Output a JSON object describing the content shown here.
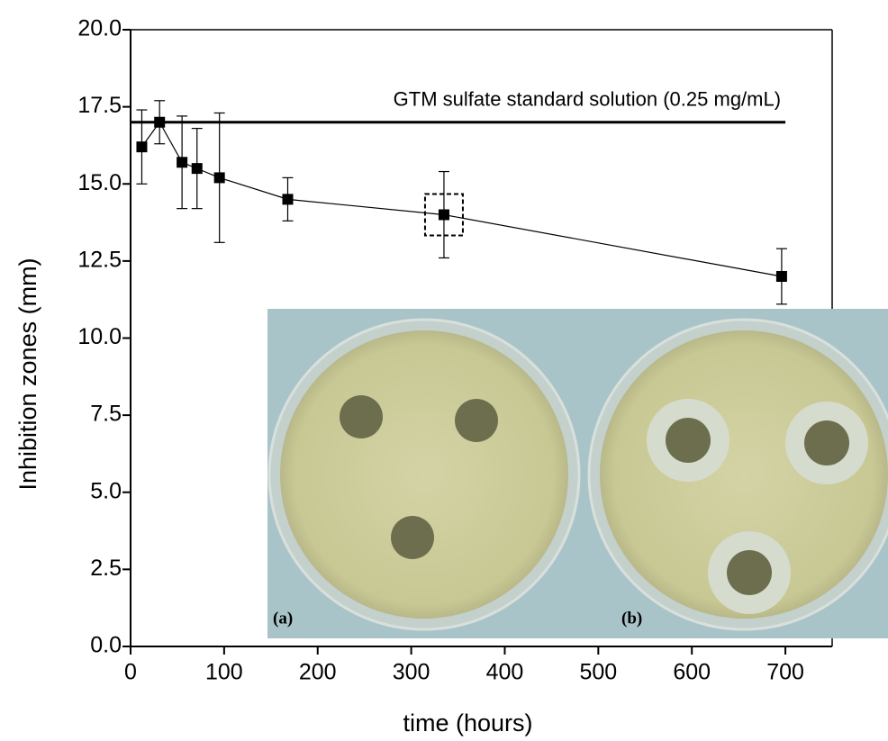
{
  "chart_data": {
    "type": "line",
    "x_label": "time (hours)",
    "y_label": "Inhibition zones (mm)",
    "x": [
      12,
      31,
      55,
      71,
      95,
      168,
      335,
      696
    ],
    "series": [
      {
        "color": "#000000",
        "values": [
          16.2,
          17.0,
          15.7,
          15.5,
          15.2,
          14.5,
          14.0,
          12.0
        ],
        "errors": [
          1.2,
          0.7,
          1.5,
          1.3,
          2.1,
          0.7,
          1.4,
          0.9
        ]
      }
    ],
    "reference_line": {
      "value": 17.0,
      "x_end": 700,
      "label": "GTM sulfate standard solution (0.25 mg/mL)"
    },
    "highlight_index": 6,
    "xlim": [
      0,
      750
    ],
    "xticks": [
      0,
      100,
      200,
      300,
      400,
      500,
      600,
      700
    ],
    "ylim": [
      0,
      20
    ],
    "yticks": [
      {
        "value": 0,
        "label": "0.0"
      },
      2.5,
      {
        "value": 5,
        "label": "5.0"
      },
      7.5,
      {
        "value": 10,
        "label": "10.0"
      },
      12.5,
      {
        "value": 15,
        "label": "15.0"
      },
      17.5,
      {
        "value": 20,
        "label": "20.0"
      }
    ],
    "inset_labels": [
      "(a)",
      "(b)"
    ]
  }
}
